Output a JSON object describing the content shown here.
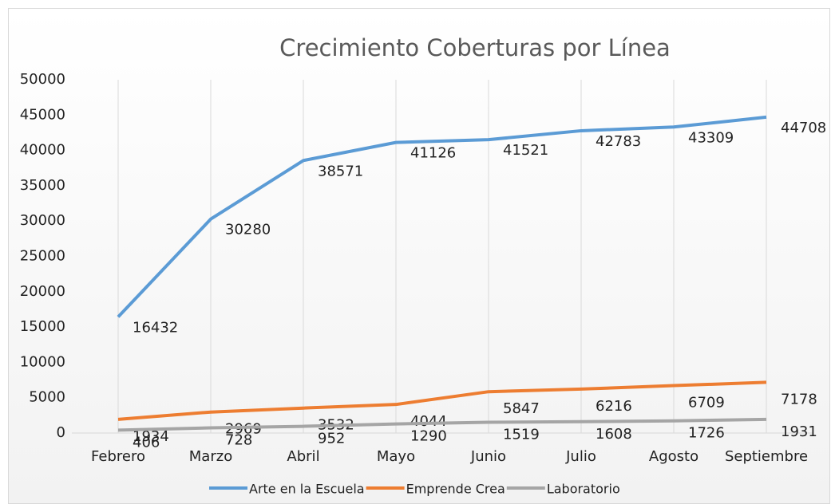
{
  "chart_data": {
    "type": "line",
    "title": "Crecimiento Coberturas por Línea",
    "categories": [
      "Febrero",
      "Marzo",
      "Abril",
      "Mayo",
      "Junio",
      "Julio",
      "Agosto",
      "Septiembre"
    ],
    "series": [
      {
        "name": "Arte en la Escuela",
        "color": "#5b9bd5",
        "values": [
          16432,
          30280,
          38571,
          41126,
          41521,
          42783,
          43309,
          44708
        ]
      },
      {
        "name": "Emprende Crea",
        "color": "#ed7d31",
        "values": [
          1934,
          2969,
          3532,
          4044,
          5847,
          6216,
          6709,
          7178
        ]
      },
      {
        "name": "Laboratorio",
        "color": "#a5a5a5",
        "values": [
          406,
          728,
          952,
          1290,
          1519,
          1608,
          1726,
          1931
        ]
      }
    ],
    "ylim": [
      0,
      50000
    ],
    "yticks": [
      0,
      5000,
      10000,
      15000,
      20000,
      25000,
      30000,
      35000,
      40000,
      45000,
      50000
    ],
    "grid": true,
    "legend": "bottom"
  }
}
